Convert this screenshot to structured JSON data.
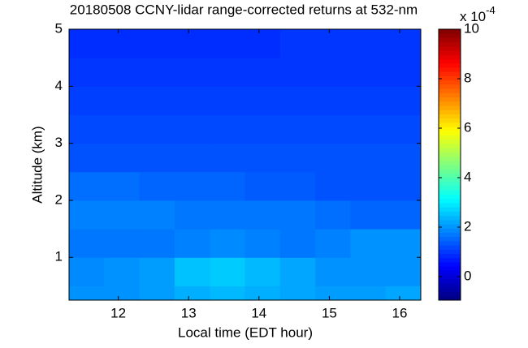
{
  "chart_data": {
    "type": "heatmap",
    "title": "20180508 CCNY-lidar range-corrected returns at 532-nm",
    "x_label": "Local time (EDT hour)",
    "y_label": "Altitude (km)",
    "colormap": "jet",
    "xbins": [
      11.3,
      11.8,
      12.3,
      12.8,
      13.3,
      13.8,
      14.3,
      14.8,
      15.3,
      15.8,
      16.3
    ],
    "ybins": [
      0.25,
      0.5,
      1,
      1.5,
      2,
      2.5,
      3,
      3.5,
      4,
      4.5,
      5
    ],
    "z": [
      [
        2.0,
        2.0,
        2.1,
        2.3,
        2.4,
        2.3,
        2.2,
        2.1,
        2.1,
        2.2
      ],
      [
        1.9,
        2.0,
        2.1,
        2.5,
        2.6,
        2.4,
        2.2,
        2.0,
        2.0,
        2.0
      ],
      [
        1.7,
        1.7,
        1.7,
        1.8,
        1.9,
        1.8,
        1.7,
        1.8,
        2.0,
        2.0
      ],
      [
        1.8,
        1.8,
        1.8,
        1.7,
        1.7,
        1.7,
        1.7,
        1.6,
        1.5,
        1.5
      ],
      [
        1.6,
        1.6,
        1.5,
        1.5,
        1.5,
        1.4,
        1.4,
        1.3,
        1.3,
        1.3
      ],
      [
        1.3,
        1.3,
        1.3,
        1.3,
        1.3,
        1.3,
        1.3,
        1.3,
        1.3,
        1.3
      ],
      [
        1.2,
        1.2,
        1.2,
        1.2,
        1.2,
        1.2,
        1.2,
        1.2,
        1.2,
        1.2
      ],
      [
        1.1,
        1.1,
        1.1,
        1.1,
        1.1,
        1.1,
        1.1,
        1.1,
        1.1,
        1.1
      ],
      [
        1.0,
        1.0,
        1.0,
        1.0,
        1.0,
        1.0,
        1.0,
        1.0,
        1.0,
        1.0
      ],
      [
        0.9,
        0.9,
        0.9,
        0.9,
        0.9,
        0.9,
        1.0,
        1.0,
        1.0,
        1.0
      ]
    ],
    "xlim": [
      11.3,
      16.3
    ],
    "xticks": [
      12,
      13,
      14,
      15,
      16
    ],
    "ylim": [
      0.25,
      5
    ],
    "yticks": [
      1,
      2,
      3,
      4,
      5
    ],
    "clim": [
      -0.95,
      10
    ],
    "cticks": [
      0,
      2,
      4,
      6,
      8,
      10
    ],
    "colorbar_exponent": {
      "base": "x 10",
      "exponent": "-4"
    }
  }
}
